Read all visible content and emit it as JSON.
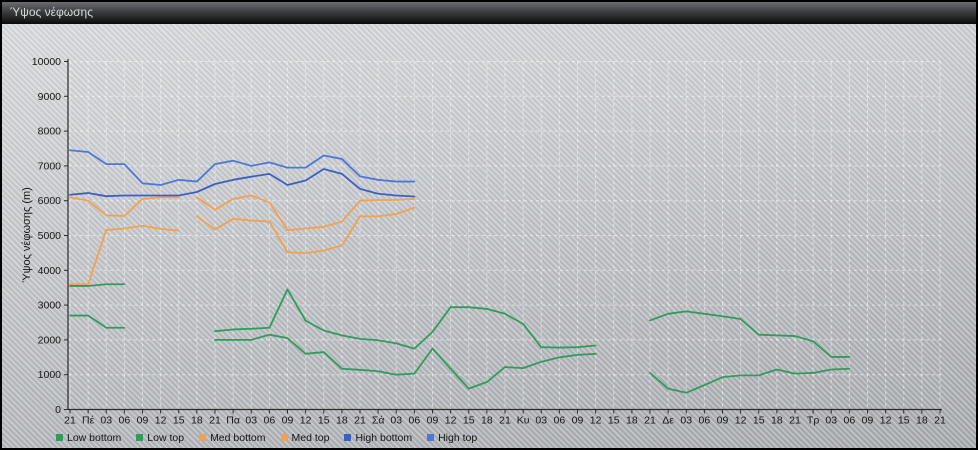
{
  "window": {
    "title": "Ύψος νέφωσης"
  },
  "chart_data": {
    "type": "line",
    "title": "Ύψος νέφωσης",
    "xlabel": "",
    "ylabel": "Ύψος νέφωσης (m)",
    "ylim": [
      0,
      10000
    ],
    "y_ticks": [
      0,
      1000,
      2000,
      3000,
      4000,
      5000,
      6000,
      7000,
      8000,
      9000,
      10000
    ],
    "grid": true,
    "legend_position": "bottom",
    "categories": [
      "21",
      "Πέ",
      "03",
      "06",
      "09",
      "12",
      "15",
      "18",
      "21",
      "Πα",
      "03",
      "06",
      "09",
      "12",
      "15",
      "18",
      "21",
      "Σά",
      "03",
      "06",
      "09",
      "12",
      "15",
      "18",
      "21",
      "Κυ",
      "03",
      "06",
      "09",
      "12",
      "15",
      "18",
      "21",
      "Δε",
      "03",
      "06",
      "09",
      "12",
      "15",
      "18",
      "21",
      "Τρ",
      "03",
      "06",
      "09",
      "12",
      "15",
      "18",
      "21"
    ],
    "series": [
      {
        "name": "Low bottom",
        "color": "#2f9c5c",
        "breaks": [],
        "values": [
          2700,
          2700,
          2350,
          2350,
          null,
          null,
          null,
          null,
          2000,
          2000,
          2000,
          2150,
          2050,
          1600,
          1650,
          1170,
          1140,
          1100,
          1000,
          1030,
          1750,
          1170,
          600,
          790,
          1220,
          1190,
          1370,
          1500,
          1570,
          1600,
          null,
          null,
          1050,
          600,
          480,
          700,
          930,
          980,
          980,
          1150,
          1030,
          1050,
          1150,
          1170,
          null,
          null,
          null,
          null,
          null
        ]
      },
      {
        "name": "Low top",
        "color": "#2f9c5c",
        "breaks": [],
        "values": [
          3550,
          3550,
          3600,
          3600,
          null,
          null,
          null,
          null,
          2250,
          2300,
          2320,
          2350,
          3450,
          2550,
          2270,
          2130,
          2030,
          1990,
          1900,
          1750,
          2230,
          2940,
          2940,
          2890,
          2750,
          2460,
          1790,
          1780,
          1790,
          1840,
          null,
          null,
          2560,
          2750,
          2820,
          2750,
          2680,
          2600,
          2150,
          2130,
          2110,
          1960,
          1510,
          1510,
          null,
          null,
          null,
          null,
          null
        ]
      },
      {
        "name": "Med bottom",
        "color": "#f4a14e",
        "breaks": [
          6
        ],
        "values": [
          3600,
          3600,
          5160,
          5200,
          5280,
          5190,
          5140,
          5550,
          5170,
          5480,
          5430,
          5400,
          4520,
          4490,
          4570,
          4710,
          5550,
          5550,
          5620,
          5800,
          null,
          null,
          null,
          null,
          null,
          null,
          null,
          null,
          null,
          null,
          null,
          null,
          null,
          null,
          null,
          null,
          null,
          null,
          null,
          null,
          null,
          null,
          null,
          null,
          null,
          null,
          null,
          null,
          null
        ]
      },
      {
        "name": "Med top",
        "color": "#f4a14e",
        "breaks": [
          6
        ],
        "values": [
          6100,
          6000,
          5580,
          5560,
          6050,
          6100,
          6100,
          6100,
          5740,
          6050,
          6150,
          5950,
          5150,
          5200,
          5250,
          5400,
          6000,
          6020,
          6020,
          6050,
          null,
          null,
          null,
          null,
          null,
          null,
          null,
          null,
          null,
          null,
          null,
          null,
          null,
          null,
          null,
          null,
          null,
          null,
          null,
          null,
          null,
          null,
          null,
          null,
          null,
          null,
          null,
          null,
          null
        ]
      },
      {
        "name": "High bottom",
        "color": "#3c5fc6",
        "breaks": [],
        "values": [
          6170,
          6220,
          6130,
          6150,
          6150,
          6150,
          6150,
          6250,
          6480,
          6600,
          6690,
          6770,
          6450,
          6580,
          6910,
          6770,
          6340,
          6200,
          6150,
          6120,
          null,
          null,
          null,
          null,
          null,
          null,
          null,
          null,
          null,
          null,
          null,
          null,
          null,
          null,
          null,
          null,
          null,
          null,
          null,
          null,
          null,
          null,
          null,
          null,
          null,
          null,
          null,
          null,
          null
        ]
      },
      {
        "name": "High top",
        "color": "#4b78da",
        "breaks": [],
        "values": [
          7450,
          7400,
          7050,
          7050,
          6500,
          6450,
          6600,
          6550,
          7050,
          7150,
          7000,
          7100,
          6950,
          6950,
          7300,
          7200,
          6700,
          6600,
          6550,
          6550,
          null,
          null,
          null,
          null,
          null,
          null,
          null,
          null,
          null,
          null,
          null,
          null,
          null,
          null,
          null,
          null,
          null,
          null,
          null,
          null,
          null,
          null,
          null,
          null,
          null,
          null,
          null,
          null,
          null
        ]
      }
    ]
  }
}
